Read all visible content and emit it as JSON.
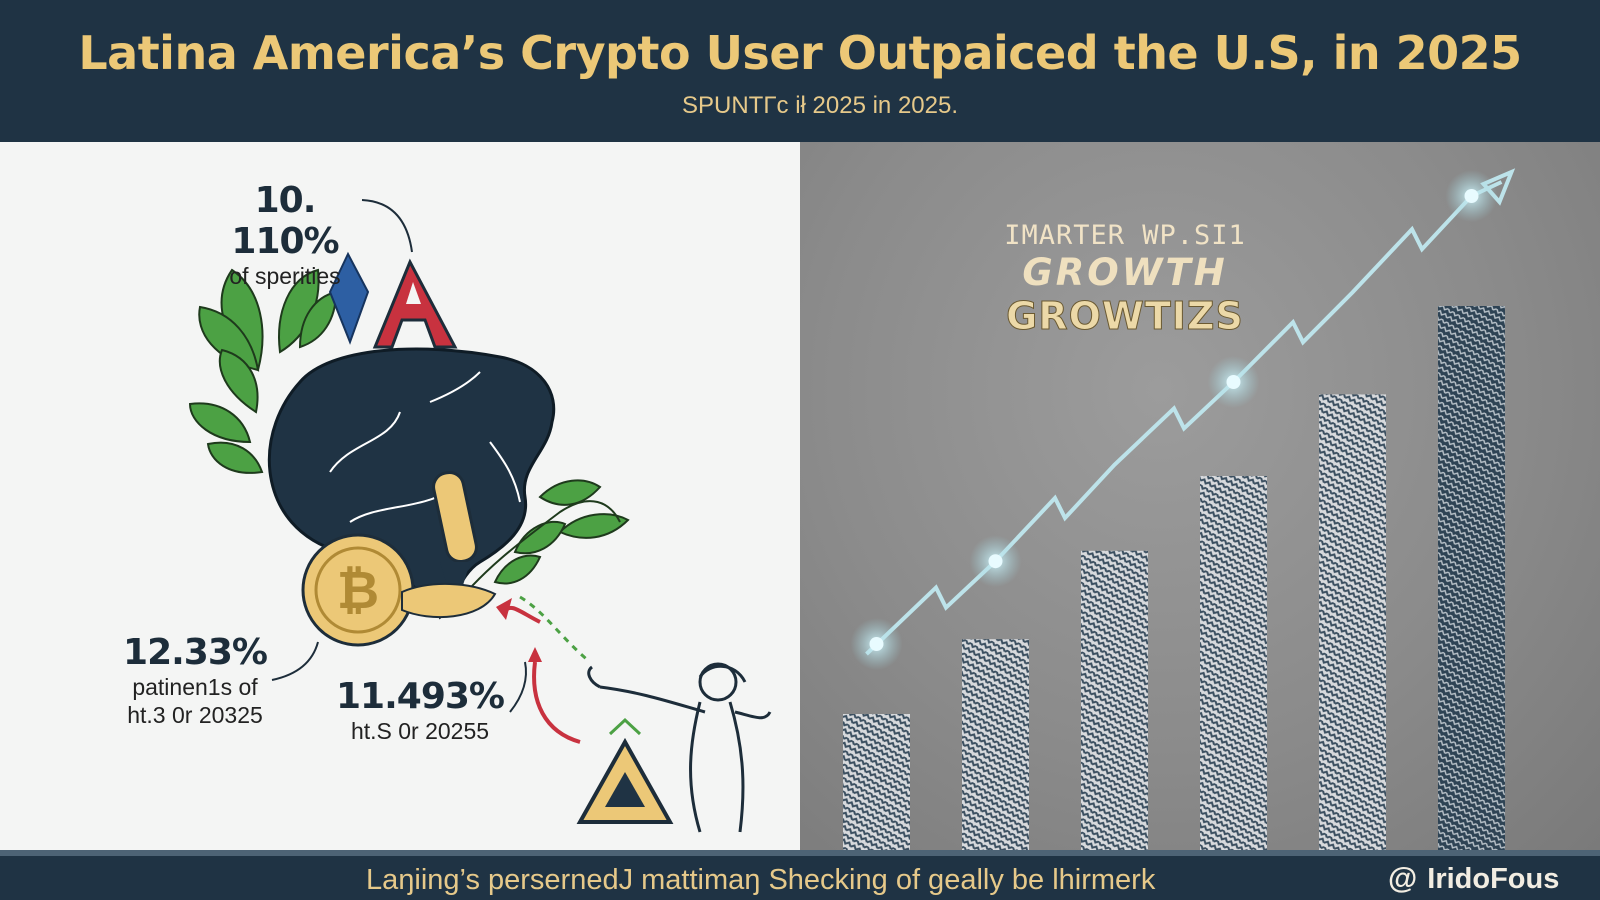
{
  "header": {
    "title": "Latina America’s Crypto User Outpaiced the U.S, in 2025",
    "subtitle": "SPUNTΓc ił 2025 in 2025."
  },
  "left_panel": {
    "stats": [
      {
        "value": "10. 110%",
        "caption": "of sperities"
      },
      {
        "value": "12.33%",
        "caption_lines": [
          "patinen1s of",
          "ht.3 0r 20325"
        ]
      },
      {
        "value": "11.493%",
        "caption": "ht.S 0r 20255"
      }
    ],
    "icons": [
      "leaf-icon",
      "map-icon",
      "letter-a-icon",
      "bitcoin-coin-icon",
      "warning-triangle-icon",
      "figure-illustration"
    ]
  },
  "right_panel": {
    "heading_lines": [
      "IMARTER WP.SI1",
      "GROWTH",
      "GROWTIZS"
    ],
    "chart_data": {
      "type": "bar",
      "values": [
        20,
        31,
        44,
        55,
        67,
        80
      ],
      "trend_line": true,
      "colors": {
        "bars": "#cfd2d6",
        "tallest_bar": "#2e4354",
        "line": "#bde3ea"
      }
    }
  },
  "footer": {
    "text": "Laŋiing’s persernedJ mattimaŋ Shecking of geally be lhirmerk",
    "brand_symbol": "@",
    "brand": "IridoFous"
  },
  "colors": {
    "navy": "#1f3344",
    "gold": "#ecc877",
    "red": "#c8323f",
    "leaf_green": "#4ca144"
  }
}
